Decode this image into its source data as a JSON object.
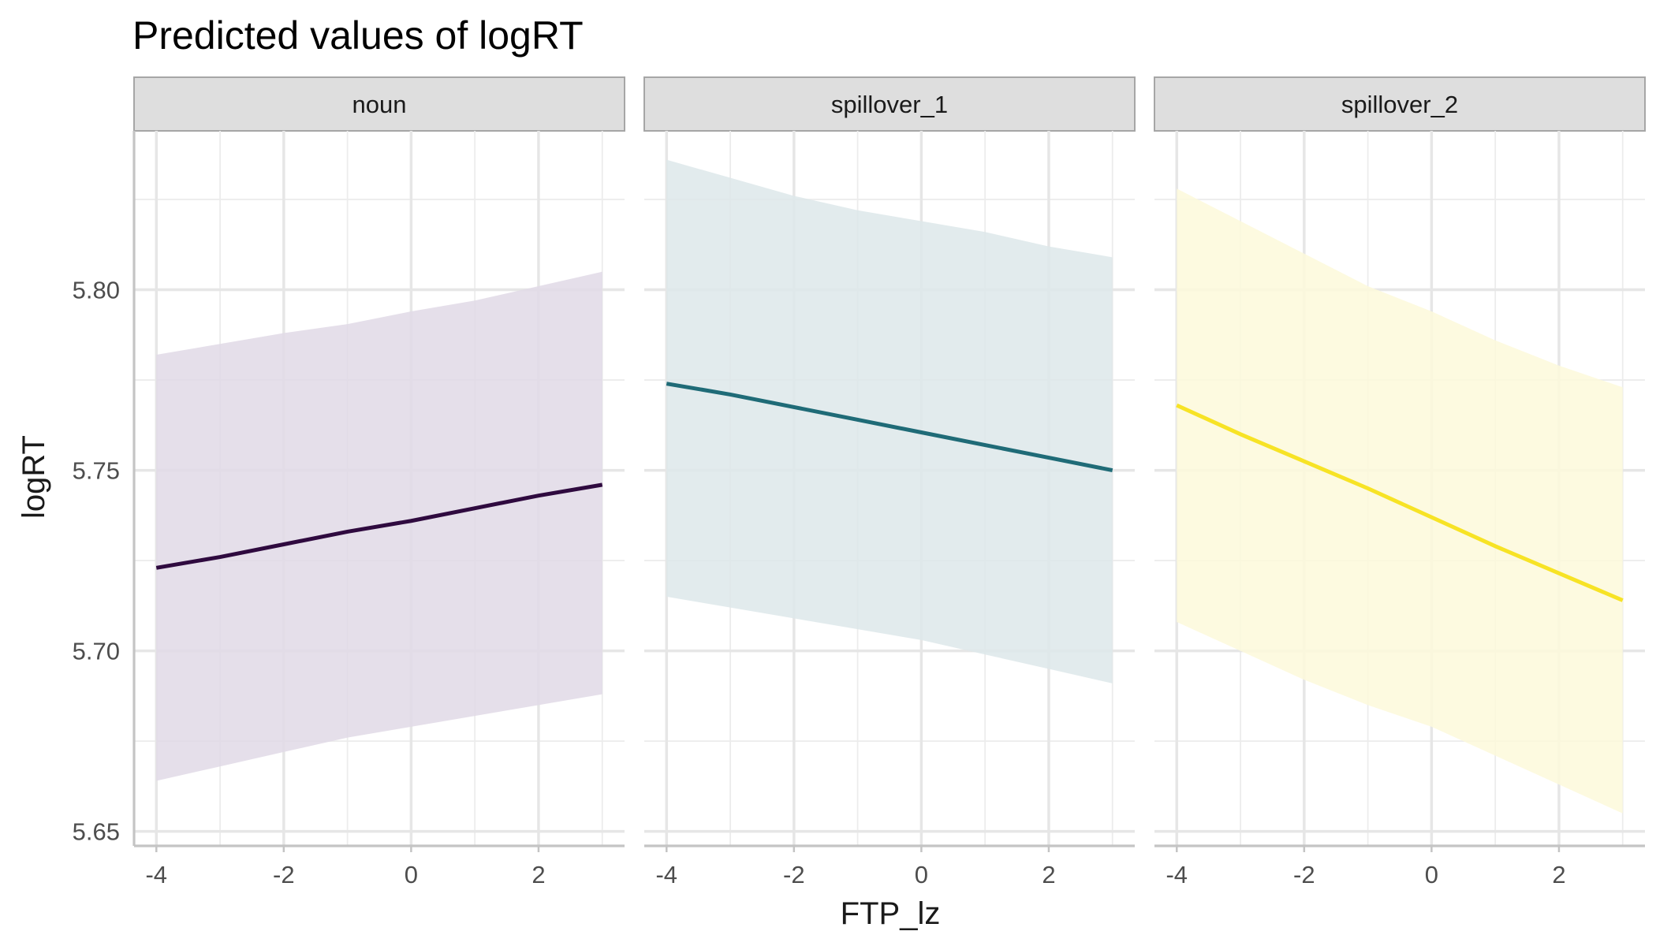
{
  "chart_data": {
    "type": "line",
    "title": "Predicted values of logRT",
    "xlabel": "FTP_lz",
    "ylabel": "logRT",
    "xlim": [
      -4.35,
      3.35
    ],
    "ylim": [
      5.646,
      5.844
    ],
    "x_ticks": [
      -4,
      -2,
      0,
      2
    ],
    "x_tick_labels": [
      "-4",
      "-2",
      "0",
      "2"
    ],
    "x_minor": [
      -3,
      -1,
      1,
      3
    ],
    "y_ticks": [
      5.65,
      5.7,
      5.75,
      5.8
    ],
    "y_tick_labels": [
      "5.65",
      "5.70",
      "5.75",
      "5.80"
    ],
    "y_minor": [
      5.675,
      5.725,
      5.775,
      5.825
    ],
    "grid": true,
    "legend": "none",
    "facets": [
      {
        "label": "noun",
        "color": "#2f0a3f",
        "ribbon_color": "#e1d9e6",
        "x": [
          -4,
          -3,
          -2,
          -1,
          0,
          1,
          2,
          3
        ],
        "y": [
          5.723,
          5.726,
          5.7295,
          5.733,
          5.736,
          5.7395,
          5.743,
          5.746
        ],
        "lower": [
          5.664,
          5.668,
          5.672,
          5.676,
          5.679,
          5.682,
          5.685,
          5.688
        ],
        "upper": [
          5.782,
          5.785,
          5.788,
          5.7905,
          5.794,
          5.797,
          5.801,
          5.805
        ]
      },
      {
        "label": "spillover_1",
        "color": "#1f6b77",
        "ribbon_color": "#dde8ea",
        "x": [
          -4,
          -3,
          -2,
          -1,
          0,
          1,
          2,
          3
        ],
        "y": [
          5.774,
          5.771,
          5.7675,
          5.764,
          5.7605,
          5.757,
          5.7535,
          5.75
        ],
        "lower": [
          5.715,
          5.712,
          5.709,
          5.706,
          5.703,
          5.699,
          5.695,
          5.691
        ],
        "upper": [
          5.836,
          5.831,
          5.826,
          5.822,
          5.819,
          5.816,
          5.812,
          5.809
        ]
      },
      {
        "label": "spillover_2",
        "color": "#f7e325",
        "ribbon_color": "#fdf9da",
        "x": [
          -4,
          -3,
          -2,
          -1,
          0,
          1,
          2,
          3
        ],
        "y": [
          5.768,
          5.76,
          5.7525,
          5.745,
          5.737,
          5.729,
          5.7215,
          5.714
        ],
        "lower": [
          5.708,
          5.7,
          5.692,
          5.685,
          5.679,
          5.671,
          5.663,
          5.655
        ],
        "upper": [
          5.828,
          5.819,
          5.81,
          5.801,
          5.794,
          5.786,
          5.779,
          5.773
        ]
      }
    ]
  }
}
